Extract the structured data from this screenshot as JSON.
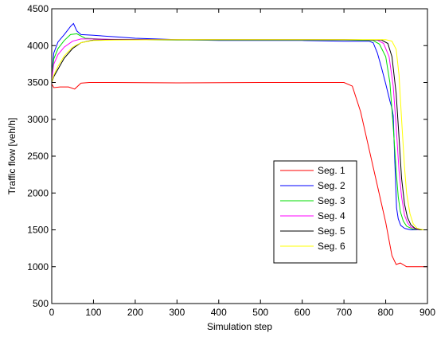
{
  "chart_data": {
    "type": "line",
    "xlabel": "Simulation step",
    "ylabel": "Traffic flow [veh/h]",
    "xlim": [
      0,
      900
    ],
    "ylim": [
      500,
      4500
    ],
    "xticks": [
      0,
      100,
      200,
      300,
      400,
      500,
      600,
      700,
      800,
      900
    ],
    "yticks": [
      500,
      1000,
      1500,
      2000,
      2500,
      3000,
      3500,
      4000,
      4500
    ],
    "grid": false,
    "legend_position": "lower-right",
    "series": [
      {
        "name": "Seg. 1",
        "color": "#ff0000",
        "x": [
          0,
          5,
          20,
          40,
          55,
          70,
          90,
          150,
          300,
          500,
          700,
          720,
          740,
          760,
          780,
          800,
          815,
          825,
          835,
          850,
          870,
          900
        ],
        "y": [
          3480,
          3430,
          3440,
          3440,
          3410,
          3490,
          3500,
          3500,
          3495,
          3500,
          3500,
          3450,
          3100,
          2600,
          2100,
          1600,
          1150,
          1030,
          1050,
          1000,
          1000,
          1000
        ]
      },
      {
        "name": "Seg. 2",
        "color": "#0000ff",
        "x": [
          0,
          5,
          15,
          30,
          45,
          52,
          60,
          70,
          100,
          150,
          200,
          300,
          400,
          500,
          600,
          700,
          760,
          770,
          780,
          790,
          800,
          810,
          815,
          818,
          822,
          826,
          830,
          836,
          845,
          860,
          880,
          900
        ],
        "y": [
          3600,
          3900,
          4050,
          4150,
          4260,
          4300,
          4200,
          4150,
          4140,
          4120,
          4100,
          4080,
          4070,
          4070,
          4070,
          4060,
          4060,
          4040,
          3900,
          3700,
          3480,
          3250,
          3150,
          3050,
          2400,
          1800,
          1650,
          1560,
          1520,
          1500,
          1500,
          1500
        ]
      },
      {
        "name": "Seg. 3",
        "color": "#00dd00",
        "x": [
          0,
          5,
          15,
          30,
          45,
          60,
          80,
          150,
          300,
          500,
          700,
          770,
          785,
          800,
          810,
          818,
          825,
          830,
          835,
          842,
          850,
          865,
          880,
          900
        ],
        "y": [
          3600,
          3820,
          3960,
          4070,
          4150,
          4160,
          4100,
          4080,
          4075,
          4075,
          4075,
          4070,
          4020,
          3850,
          3500,
          2900,
          2300,
          1950,
          1750,
          1620,
          1550,
          1510,
          1500,
          1500
        ]
      },
      {
        "name": "Seg. 4",
        "color": "#ff00ff",
        "x": [
          0,
          5,
          15,
          30,
          50,
          70,
          100,
          150,
          300,
          500,
          700,
          780,
          795,
          808,
          818,
          825,
          832,
          838,
          845,
          852,
          860,
          875,
          890,
          900
        ],
        "y": [
          3550,
          3750,
          3880,
          3980,
          4060,
          4090,
          4090,
          4085,
          4080,
          4080,
          4080,
          4075,
          4030,
          3850,
          3450,
          2900,
          2300,
          1950,
          1700,
          1600,
          1540,
          1505,
          1500,
          1500
        ]
      },
      {
        "name": "Seg. 5",
        "color": "#000000",
        "x": [
          0,
          5,
          15,
          30,
          50,
          70,
          100,
          150,
          300,
          500,
          700,
          790,
          805,
          815,
          825,
          832,
          838,
          845,
          852,
          860,
          870,
          885,
          900
        ],
        "y": [
          3500,
          3580,
          3680,
          3830,
          3960,
          4040,
          4075,
          4080,
          4080,
          4080,
          4080,
          4075,
          4030,
          3850,
          3350,
          2750,
          2200,
          1850,
          1670,
          1570,
          1520,
          1500,
          1500
        ]
      },
      {
        "name": "Seg. 6",
        "color": "#ffff00",
        "x": [
          0,
          5,
          15,
          30,
          50,
          70,
          100,
          150,
          300,
          500,
          700,
          800,
          815,
          825,
          832,
          838,
          845,
          850,
          858,
          866,
          875,
          890,
          900
        ],
        "y": [
          3500,
          3600,
          3720,
          3860,
          3980,
          4040,
          4070,
          4075,
          4080,
          4080,
          4080,
          4080,
          4060,
          3950,
          3600,
          3000,
          2350,
          2000,
          1720,
          1580,
          1520,
          1500,
          1500
        ]
      }
    ]
  }
}
